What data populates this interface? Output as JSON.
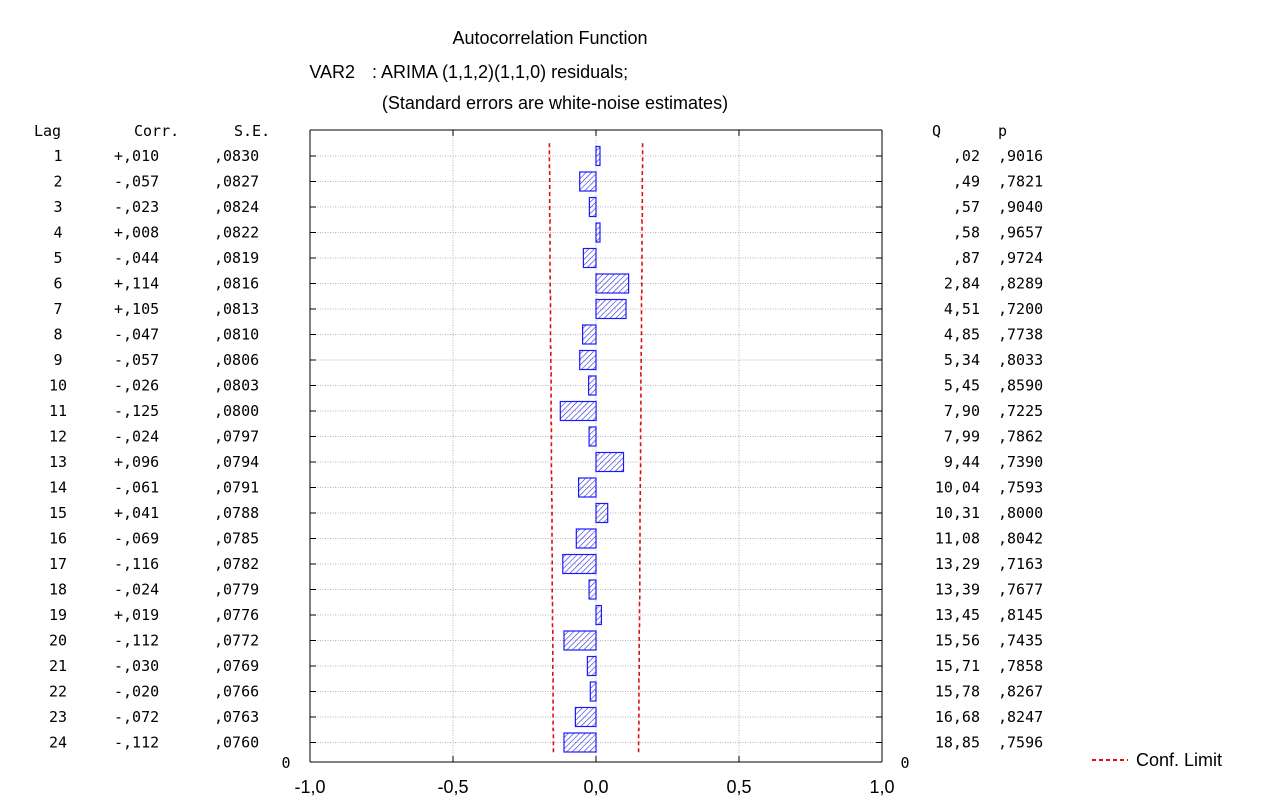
{
  "chart_data": {
    "type": "bar",
    "orientation": "horizontal",
    "title": "Autocorrelation Function",
    "subtitle_var": "VAR2",
    "subtitle_model": ": ARIMA (1,1,2)(1,1,0) residuals;",
    "subtitle_note": "(Standard errors are white-noise estimates)",
    "table_headers": {
      "lag": "Lag",
      "corr": "Corr.",
      "se": "S.E.",
      "q": "Q",
      "p": "p"
    },
    "rows": [
      {
        "lag": "1",
        "corr_text": "+,010",
        "se": ",0830",
        "q": ",02",
        "p": ",9016",
        "value": 0.01,
        "conf": 0.163
      },
      {
        "lag": "2",
        "corr_text": "-,057",
        "se": ",0827",
        "q": ",49",
        "p": ",7821",
        "value": -0.057,
        "conf": 0.162
      },
      {
        "lag": "3",
        "corr_text": "-,023",
        "se": ",0824",
        "q": ",57",
        "p": ",9040",
        "value": -0.023,
        "conf": 0.162
      },
      {
        "lag": "4",
        "corr_text": "+,008",
        "se": ",0822",
        "q": ",58",
        "p": ",9657",
        "value": 0.008,
        "conf": 0.161
      },
      {
        "lag": "5",
        "corr_text": "-,044",
        "se": ",0819",
        "q": ",87",
        "p": ",9724",
        "value": -0.044,
        "conf": 0.161
      },
      {
        "lag": "6",
        "corr_text": "+,114",
        "se": ",0816",
        "q": "2,84",
        "p": ",8289",
        "value": 0.114,
        "conf": 0.16
      },
      {
        "lag": "7",
        "corr_text": "+,105",
        "se": ",0813",
        "q": "4,51",
        "p": ",7200",
        "value": 0.105,
        "conf": 0.159
      },
      {
        "lag": "8",
        "corr_text": "-,047",
        "se": ",0810",
        "q": "4,85",
        "p": ",7738",
        "value": -0.047,
        "conf": 0.159
      },
      {
        "lag": "9",
        "corr_text": "-,057",
        "se": ",0806",
        "q": "5,34",
        "p": ",8033",
        "value": -0.057,
        "conf": 0.158
      },
      {
        "lag": "10",
        "corr_text": "-,026",
        "se": ",0803",
        "q": "5,45",
        "p": ",8590",
        "value": -0.026,
        "conf": 0.157
      },
      {
        "lag": "11",
        "corr_text": "-,125",
        "se": ",0800",
        "q": "7,90",
        "p": ",7225",
        "value": -0.125,
        "conf": 0.157
      },
      {
        "lag": "12",
        "corr_text": "-,024",
        "se": ",0797",
        "q": "7,99",
        "p": ",7862",
        "value": -0.024,
        "conf": 0.156
      },
      {
        "lag": "13",
        "corr_text": "+,096",
        "se": ",0794",
        "q": "9,44",
        "p": ",7390",
        "value": 0.096,
        "conf": 0.156
      },
      {
        "lag": "14",
        "corr_text": "-,061",
        "se": ",0791",
        "q": "10,04",
        "p": ",7593",
        "value": -0.061,
        "conf": 0.155
      },
      {
        "lag": "15",
        "corr_text": "+,041",
        "se": ",0788",
        "q": "10,31",
        "p": ",8000",
        "value": 0.041,
        "conf": 0.154
      },
      {
        "lag": "16",
        "corr_text": "-,069",
        "se": ",0785",
        "q": "11,08",
        "p": ",8042",
        "value": -0.069,
        "conf": 0.154
      },
      {
        "lag": "17",
        "corr_text": "-,116",
        "se": ",0782",
        "q": "13,29",
        "p": ",7163",
        "value": -0.116,
        "conf": 0.153
      },
      {
        "lag": "18",
        "corr_text": "-,024",
        "se": ",0779",
        "q": "13,39",
        "p": ",7677",
        "value": -0.024,
        "conf": 0.153
      },
      {
        "lag": "19",
        "corr_text": "+,019",
        "se": ",0776",
        "q": "13,45",
        "p": ",8145",
        "value": 0.019,
        "conf": 0.152
      },
      {
        "lag": "20",
        "corr_text": "-,112",
        "se": ",0772",
        "q": "15,56",
        "p": ",7435",
        "value": -0.112,
        "conf": 0.151
      },
      {
        "lag": "21",
        "corr_text": "-,030",
        "se": ",0769",
        "q": "15,71",
        "p": ",7858",
        "value": -0.03,
        "conf": 0.151
      },
      {
        "lag": "22",
        "corr_text": "-,020",
        "se": ",0766",
        "q": "15,78",
        "p": ",8267",
        "value": -0.02,
        "conf": 0.15
      },
      {
        "lag": "23",
        "corr_text": "-,072",
        "se": ",0763",
        "q": "16,68",
        "p": ",8247",
        "value": -0.072,
        "conf": 0.15
      },
      {
        "lag": "24",
        "corr_text": "-,112",
        "se": ",0760",
        "q": "18,85",
        "p": ",7596",
        "value": -0.112,
        "conf": 0.149
      }
    ],
    "xlim": [
      -1.0,
      1.0
    ],
    "x_ticks": [
      -1.0,
      -0.5,
      0.0,
      0.5,
      1.0
    ],
    "x_tick_labels": [
      "-1,0",
      "-0,5",
      "0,0",
      "0,5",
      "1,0"
    ],
    "y_end_label": "0",
    "q_end_label": "0",
    "legend": {
      "label": "Conf. Limit",
      "position": "bottom-right"
    },
    "colors": {
      "bar_stroke": "#1a1aff",
      "bar_hatch": "#2a2ad8",
      "conf_limit": "#e01010",
      "grid": "#9a9a9a",
      "axis": "#000000"
    }
  }
}
